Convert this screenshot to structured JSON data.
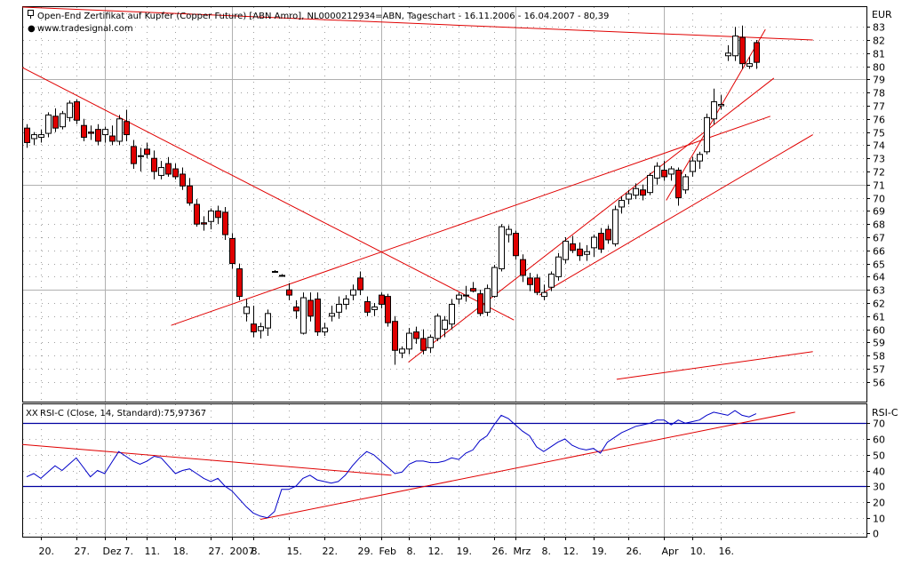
{
  "colors": {
    "up_body": "#ffffff",
    "down_body": "#e00000",
    "wick": "#000000",
    "trendline": "#e00000",
    "rsi_line": "#0000c8",
    "rsi_levels": "#0000a0",
    "grid": "#a0a0a0",
    "frame": "#000000"
  },
  "header": {
    "title": "Open-End Zertifikat auf Kupfer (Copper Future) [ABN Amro], NL0000212934=ABN, Tageschart - 16.11.2006 - 16.04.2007 - 80,39",
    "source": "www.tradesignal.com",
    "currency": "EUR"
  },
  "rsi_panel": {
    "title": "RSI-C (Close, 14, Standard):75,97367",
    "axis_label": "RSI-C",
    "levels": [
      70,
      30
    ]
  },
  "x_axis": {
    "labels": [
      {
        "i": 2,
        "text": "20."
      },
      {
        "i": 7,
        "text": "27."
      },
      {
        "i": 11,
        "text": "Dez"
      },
      {
        "i": 14,
        "text": "7."
      },
      {
        "i": 17,
        "text": "11."
      },
      {
        "i": 21,
        "text": "18."
      },
      {
        "i": 26,
        "text": "27."
      },
      {
        "i": 29,
        "text": "2007"
      },
      {
        "i": 32,
        "text": "8."
      },
      {
        "i": 37,
        "text": "15."
      },
      {
        "i": 42,
        "text": "22."
      },
      {
        "i": 47,
        "text": "29."
      },
      {
        "i": 50,
        "text": "Feb"
      },
      {
        "i": 54,
        "text": "8."
      },
      {
        "i": 57,
        "text": "12."
      },
      {
        "i": 61,
        "text": "19."
      },
      {
        "i": 66,
        "text": "26."
      },
      {
        "i": 69,
        "text": "Mrz"
      },
      {
        "i": 73,
        "text": "8."
      },
      {
        "i": 76,
        "text": "12."
      },
      {
        "i": 80,
        "text": "19."
      },
      {
        "i": 85,
        "text": "26."
      },
      {
        "i": 90,
        "text": "Apr"
      },
      {
        "i": 94,
        "text": "10."
      },
      {
        "i": 98,
        "text": "16."
      }
    ]
  },
  "chart_data": [
    {
      "type": "candlestick",
      "title": "Open-End Zertifikat auf Kupfer (Copper Future) [ABN Amro], NL0000212934=ABN, Tageschart - 16.11.2006 - 16.04.2007 - 80,39",
      "ylabel": "EUR",
      "ylim": [
        54.5,
        84.5
      ],
      "y_ticks": [
        56,
        57,
        58,
        59,
        60,
        61,
        62,
        63,
        64,
        65,
        66,
        67,
        68,
        69,
        70,
        71,
        72,
        73,
        74,
        75,
        76,
        77,
        78,
        79,
        80,
        81,
        82,
        83
      ],
      "candles": [
        {
          "i": 0,
          "o": 75.3,
          "h": 75.6,
          "l": 73.8,
          "c": 74.2
        },
        {
          "i": 1,
          "o": 74.5,
          "h": 75.0,
          "l": 74.0,
          "c": 74.8
        },
        {
          "i": 2,
          "o": 74.6,
          "h": 75.2,
          "l": 74.2,
          "c": 74.8
        },
        {
          "i": 3,
          "o": 74.9,
          "h": 76.5,
          "l": 74.6,
          "c": 76.3
        },
        {
          "i": 4,
          "o": 76.2,
          "h": 76.8,
          "l": 75.0,
          "c": 75.3
        },
        {
          "i": 5,
          "o": 75.4,
          "h": 76.6,
          "l": 75.2,
          "c": 76.4
        },
        {
          "i": 6,
          "o": 76.1,
          "h": 77.4,
          "l": 75.8,
          "c": 77.2
        },
        {
          "i": 7,
          "o": 77.3,
          "h": 77.5,
          "l": 75.6,
          "c": 75.9
        },
        {
          "i": 8,
          "o": 75.5,
          "h": 76.0,
          "l": 74.3,
          "c": 74.6
        },
        {
          "i": 9,
          "o": 75.0,
          "h": 75.5,
          "l": 74.4,
          "c": 74.9
        },
        {
          "i": 10,
          "o": 75.2,
          "h": 75.6,
          "l": 74.0,
          "c": 74.3
        },
        {
          "i": 11,
          "o": 74.8,
          "h": 75.4,
          "l": 74.2,
          "c": 75.2
        },
        {
          "i": 12,
          "o": 74.7,
          "h": 75.5,
          "l": 74.0,
          "c": 74.3
        },
        {
          "i": 13,
          "o": 74.3,
          "h": 76.3,
          "l": 74.0,
          "c": 76.0
        },
        {
          "i": 14,
          "o": 75.8,
          "h": 76.7,
          "l": 74.3,
          "c": 74.8
        },
        {
          "i": 15,
          "o": 73.9,
          "h": 74.4,
          "l": 72.2,
          "c": 72.6
        },
        {
          "i": 16,
          "o": 73.2,
          "h": 73.8,
          "l": 72.0,
          "c": 73.2
        },
        {
          "i": 17,
          "o": 73.7,
          "h": 74.2,
          "l": 73.0,
          "c": 73.3
        },
        {
          "i": 18,
          "o": 73.0,
          "h": 73.6,
          "l": 71.4,
          "c": 72.0
        },
        {
          "i": 19,
          "o": 71.7,
          "h": 72.8,
          "l": 71.4,
          "c": 72.3
        },
        {
          "i": 20,
          "o": 72.6,
          "h": 73.1,
          "l": 71.6,
          "c": 71.8
        },
        {
          "i": 21,
          "o": 72.2,
          "h": 72.6,
          "l": 71.4,
          "c": 71.6
        },
        {
          "i": 22,
          "o": 71.8,
          "h": 72.3,
          "l": 70.6,
          "c": 70.9
        },
        {
          "i": 23,
          "o": 70.9,
          "h": 71.5,
          "l": 69.4,
          "c": 69.6
        },
        {
          "i": 24,
          "o": 69.5,
          "h": 69.9,
          "l": 67.8,
          "c": 68.0
        },
        {
          "i": 25,
          "o": 68.1,
          "h": 68.6,
          "l": 67.5,
          "c": 68.0
        },
        {
          "i": 26,
          "o": 68.2,
          "h": 69.2,
          "l": 67.6,
          "c": 69.0
        },
        {
          "i": 27,
          "o": 69.0,
          "h": 69.4,
          "l": 68.0,
          "c": 68.5
        },
        {
          "i": 28,
          "o": 68.9,
          "h": 69.3,
          "l": 66.8,
          "c": 67.2
        },
        {
          "i": 29,
          "o": 66.9,
          "h": 67.3,
          "l": 64.6,
          "c": 65.0
        },
        {
          "i": 30,
          "o": 64.6,
          "h": 65.0,
          "l": 62.2,
          "c": 62.5
        },
        {
          "i": 31,
          "o": 61.2,
          "h": 62.3,
          "l": 60.6,
          "c": 61.7
        },
        {
          "i": 32,
          "o": 60.4,
          "h": 61.8,
          "l": 59.4,
          "c": 59.8
        },
        {
          "i": 33,
          "o": 59.9,
          "h": 60.5,
          "l": 59.3,
          "c": 60.2
        },
        {
          "i": 34,
          "o": 60.1,
          "h": 61.5,
          "l": 59.5,
          "c": 61.2
        },
        {
          "i": 35,
          "o": 64.4,
          "h": 64.5,
          "l": 64.3,
          "c": 64.4
        },
        {
          "i": 36,
          "o": 64.1,
          "h": 64.2,
          "l": 64.0,
          "c": 64.1
        },
        {
          "i": 37,
          "o": 63.0,
          "h": 63.5,
          "l": 62.2,
          "c": 62.6
        },
        {
          "i": 38,
          "o": 61.7,
          "h": 62.2,
          "l": 60.8,
          "c": 61.4
        },
        {
          "i": 39,
          "o": 59.7,
          "h": 62.8,
          "l": 59.6,
          "c": 62.4
        },
        {
          "i": 40,
          "o": 62.2,
          "h": 62.8,
          "l": 60.6,
          "c": 61.0
        },
        {
          "i": 41,
          "o": 62.3,
          "h": 62.8,
          "l": 59.5,
          "c": 59.8
        },
        {
          "i": 42,
          "o": 59.8,
          "h": 60.5,
          "l": 59.5,
          "c": 60.1
        },
        {
          "i": 43,
          "o": 61.0,
          "h": 61.8,
          "l": 60.6,
          "c": 61.2
        },
        {
          "i": 44,
          "o": 61.3,
          "h": 62.5,
          "l": 60.8,
          "c": 61.9
        },
        {
          "i": 45,
          "o": 61.9,
          "h": 62.6,
          "l": 61.5,
          "c": 62.3
        },
        {
          "i": 46,
          "o": 62.6,
          "h": 63.4,
          "l": 62.2,
          "c": 63.0
        },
        {
          "i": 47,
          "o": 63.9,
          "h": 64.4,
          "l": 62.6,
          "c": 63.0
        },
        {
          "i": 48,
          "o": 62.1,
          "h": 62.5,
          "l": 61.0,
          "c": 61.3
        },
        {
          "i": 49,
          "o": 61.5,
          "h": 62.0,
          "l": 61.0,
          "c": 61.7
        },
        {
          "i": 50,
          "o": 62.6,
          "h": 62.8,
          "l": 61.6,
          "c": 61.9
        },
        {
          "i": 51,
          "o": 62.5,
          "h": 62.7,
          "l": 60.2,
          "c": 60.5
        },
        {
          "i": 52,
          "o": 60.6,
          "h": 61.0,
          "l": 57.3,
          "c": 58.4
        },
        {
          "i": 53,
          "o": 58.2,
          "h": 58.7,
          "l": 57.8,
          "c": 58.5
        },
        {
          "i": 54,
          "o": 58.5,
          "h": 60.1,
          "l": 58.1,
          "c": 59.7
        },
        {
          "i": 55,
          "o": 59.8,
          "h": 60.2,
          "l": 58.9,
          "c": 59.3
        },
        {
          "i": 56,
          "o": 59.3,
          "h": 60.0,
          "l": 58.1,
          "c": 58.4
        },
        {
          "i": 57,
          "o": 58.6,
          "h": 59.6,
          "l": 58.2,
          "c": 59.4
        },
        {
          "i": 58,
          "o": 59.3,
          "h": 61.2,
          "l": 59.1,
          "c": 61.0
        },
        {
          "i": 59,
          "o": 60.0,
          "h": 61.0,
          "l": 59.4,
          "c": 60.7
        },
        {
          "i": 60,
          "o": 60.4,
          "h": 62.3,
          "l": 60.0,
          "c": 61.9
        },
        {
          "i": 61,
          "o": 62.3,
          "h": 62.8,
          "l": 61.9,
          "c": 62.6
        },
        {
          "i": 62,
          "o": 62.6,
          "h": 63.3,
          "l": 62.1,
          "c": 62.6
        },
        {
          "i": 63,
          "o": 63.1,
          "h": 63.6,
          "l": 62.8,
          "c": 62.9
        },
        {
          "i": 64,
          "o": 62.7,
          "h": 63.0,
          "l": 61.0,
          "c": 61.2
        },
        {
          "i": 65,
          "o": 61.3,
          "h": 63.4,
          "l": 61.0,
          "c": 63.1
        },
        {
          "i": 66,
          "o": 62.5,
          "h": 64.9,
          "l": 62.4,
          "c": 64.7
        },
        {
          "i": 67,
          "o": 64.6,
          "h": 68.0,
          "l": 64.4,
          "c": 67.8
        },
        {
          "i": 68,
          "o": 67.2,
          "h": 67.9,
          "l": 66.6,
          "c": 67.6
        },
        {
          "i": 69,
          "o": 67.3,
          "h": 67.5,
          "l": 65.3,
          "c": 65.6
        },
        {
          "i": 70,
          "o": 65.3,
          "h": 65.7,
          "l": 63.6,
          "c": 64.1
        },
        {
          "i": 71,
          "o": 63.9,
          "h": 64.3,
          "l": 62.9,
          "c": 63.4
        },
        {
          "i": 72,
          "o": 63.9,
          "h": 64.2,
          "l": 62.6,
          "c": 62.8
        },
        {
          "i": 73,
          "o": 62.5,
          "h": 63.4,
          "l": 62.2,
          "c": 62.8
        },
        {
          "i": 74,
          "o": 63.2,
          "h": 64.4,
          "l": 62.9,
          "c": 64.2
        },
        {
          "i": 75,
          "o": 64.0,
          "h": 65.8,
          "l": 63.7,
          "c": 65.5
        },
        {
          "i": 76,
          "o": 65.3,
          "h": 67.0,
          "l": 65.0,
          "c": 66.7
        },
        {
          "i": 77,
          "o": 66.5,
          "h": 67.1,
          "l": 65.8,
          "c": 66.0
        },
        {
          "i": 78,
          "o": 66.1,
          "h": 66.6,
          "l": 65.2,
          "c": 65.6
        },
        {
          "i": 79,
          "o": 65.7,
          "h": 66.4,
          "l": 65.2,
          "c": 65.9
        },
        {
          "i": 80,
          "o": 66.2,
          "h": 67.2,
          "l": 65.5,
          "c": 67.0
        },
        {
          "i": 81,
          "o": 67.3,
          "h": 67.7,
          "l": 65.8,
          "c": 66.1
        },
        {
          "i": 82,
          "o": 67.6,
          "h": 67.9,
          "l": 66.5,
          "c": 66.8
        },
        {
          "i": 83,
          "o": 66.5,
          "h": 69.4,
          "l": 66.3,
          "c": 69.1
        },
        {
          "i": 84,
          "o": 69.3,
          "h": 70.1,
          "l": 68.8,
          "c": 69.8
        },
        {
          "i": 85,
          "o": 69.9,
          "h": 70.6,
          "l": 69.5,
          "c": 70.3
        },
        {
          "i": 86,
          "o": 70.2,
          "h": 71.1,
          "l": 69.9,
          "c": 70.7
        },
        {
          "i": 87,
          "o": 70.6,
          "h": 71.0,
          "l": 69.8,
          "c": 70.2
        },
        {
          "i": 88,
          "o": 70.4,
          "h": 71.9,
          "l": 70.2,
          "c": 71.7
        },
        {
          "i": 89,
          "o": 71.5,
          "h": 72.7,
          "l": 71.0,
          "c": 72.4
        },
        {
          "i": 90,
          "o": 72.1,
          "h": 72.8,
          "l": 71.3,
          "c": 71.6
        },
        {
          "i": 91,
          "o": 71.8,
          "h": 72.4,
          "l": 71.3,
          "c": 72.2
        },
        {
          "i": 92,
          "o": 72.1,
          "h": 72.3,
          "l": 69.4,
          "c": 70.0
        },
        {
          "i": 93,
          "o": 70.6,
          "h": 71.8,
          "l": 70.3,
          "c": 71.6
        },
        {
          "i": 94,
          "o": 72.0,
          "h": 73.1,
          "l": 71.6,
          "c": 72.8
        },
        {
          "i": 95,
          "o": 72.8,
          "h": 73.5,
          "l": 72.2,
          "c": 73.3
        },
        {
          "i": 96,
          "o": 73.5,
          "h": 76.4,
          "l": 73.3,
          "c": 76.1
        },
        {
          "i": 97,
          "o": 76.0,
          "h": 78.3,
          "l": 75.6,
          "c": 77.3
        },
        {
          "i": 98,
          "o": 77.0,
          "h": 77.8,
          "l": 76.7,
          "c": 77.1
        },
        {
          "i": 99,
          "o": 80.8,
          "h": 81.6,
          "l": 80.4,
          "c": 81.0
        },
        {
          "i": 100,
          "o": 80.8,
          "h": 83.0,
          "l": 80.4,
          "c": 82.3
        },
        {
          "i": 101,
          "o": 82.2,
          "h": 83.1,
          "l": 79.8,
          "c": 80.2
        },
        {
          "i": 102,
          "o": 80.0,
          "h": 80.7,
          "l": 79.8,
          "c": 80.2
        },
        {
          "i": 103,
          "o": 81.8,
          "h": 82.0,
          "l": 79.8,
          "c": 80.3
        }
      ],
      "trendlines": [
        {
          "i1": -0.6,
          "v1": 84.5,
          "i2": 111,
          "v2": 82.0
        },
        {
          "i1": -0.6,
          "v1": 79.9,
          "i2": 68.8,
          "v2": 60.7
        },
        {
          "i1": 20.4,
          "v1": 60.3,
          "i2": 105,
          "v2": 76.2
        },
        {
          "i1": 53.9,
          "v1": 57.5,
          "i2": 105.5,
          "v2": 79.1
        },
        {
          "i1": 72.4,
          "v1": 62.6,
          "i2": 111,
          "v2": 74.8
        },
        {
          "i1": 90.3,
          "v1": 69.8,
          "i2": 104.3,
          "v2": 82.8
        },
        {
          "i1": 83.3,
          "v1": 56.2,
          "i2": 111,
          "v2": 58.3
        }
      ]
    },
    {
      "type": "line",
      "title": "RSI-C (Close, 14, Standard):75,97367",
      "ylabel": "RSI-C",
      "ylim": [
        -2,
        82
      ],
      "y_ticks": [
        0,
        10,
        20,
        30,
        40,
        50,
        60,
        70
      ],
      "levels": [
        70,
        30
      ],
      "series": [
        {
          "name": "RSI-C",
          "values": [
            36,
            38,
            35,
            39,
            43,
            40,
            44,
            48,
            42,
            36,
            40,
            38,
            45,
            52,
            49,
            46,
            44,
            46,
            49,
            48,
            43,
            38,
            40,
            41,
            38,
            35,
            33,
            35,
            30,
            27,
            22,
            17,
            13,
            11,
            10,
            14,
            28,
            28,
            30,
            35,
            37,
            34,
            33,
            32,
            33,
            37,
            43,
            48,
            52,
            50,
            46,
            42,
            38,
            39,
            44,
            46,
            46,
            45,
            45,
            46,
            48,
            47,
            51,
            53,
            59,
            62,
            69,
            75,
            73,
            69,
            65,
            62,
            55,
            52,
            55,
            58,
            60,
            56,
            54,
            53,
            54,
            51,
            58,
            61,
            64,
            66,
            68,
            69,
            70,
            72,
            72,
            69,
            72,
            70,
            71,
            72,
            75,
            77,
            76,
            75,
            78,
            75,
            74,
            76
          ]
        }
      ],
      "trendlines": [
        {
          "i1": -0.6,
          "v1": 56.5,
          "i2": 51.5,
          "v2": 37.0
        },
        {
          "i1": 33,
          "v1": 9.0,
          "i2": 108.5,
          "v2": 77.0
        }
      ]
    }
  ]
}
